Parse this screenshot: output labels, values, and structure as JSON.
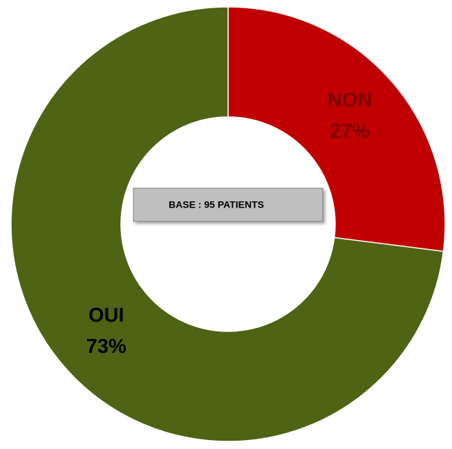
{
  "chart_data": {
    "type": "donut",
    "categories": [
      "NON",
      "OUI"
    ],
    "values": [
      27,
      73
    ],
    "value_labels": [
      "27%",
      "73%"
    ],
    "colors": [
      "#c00000",
      "#4e6314"
    ],
    "label_colors": [
      "#7a0000",
      "#000000"
    ],
    "annotation": "BASE : 95  PATIENTS"
  }
}
